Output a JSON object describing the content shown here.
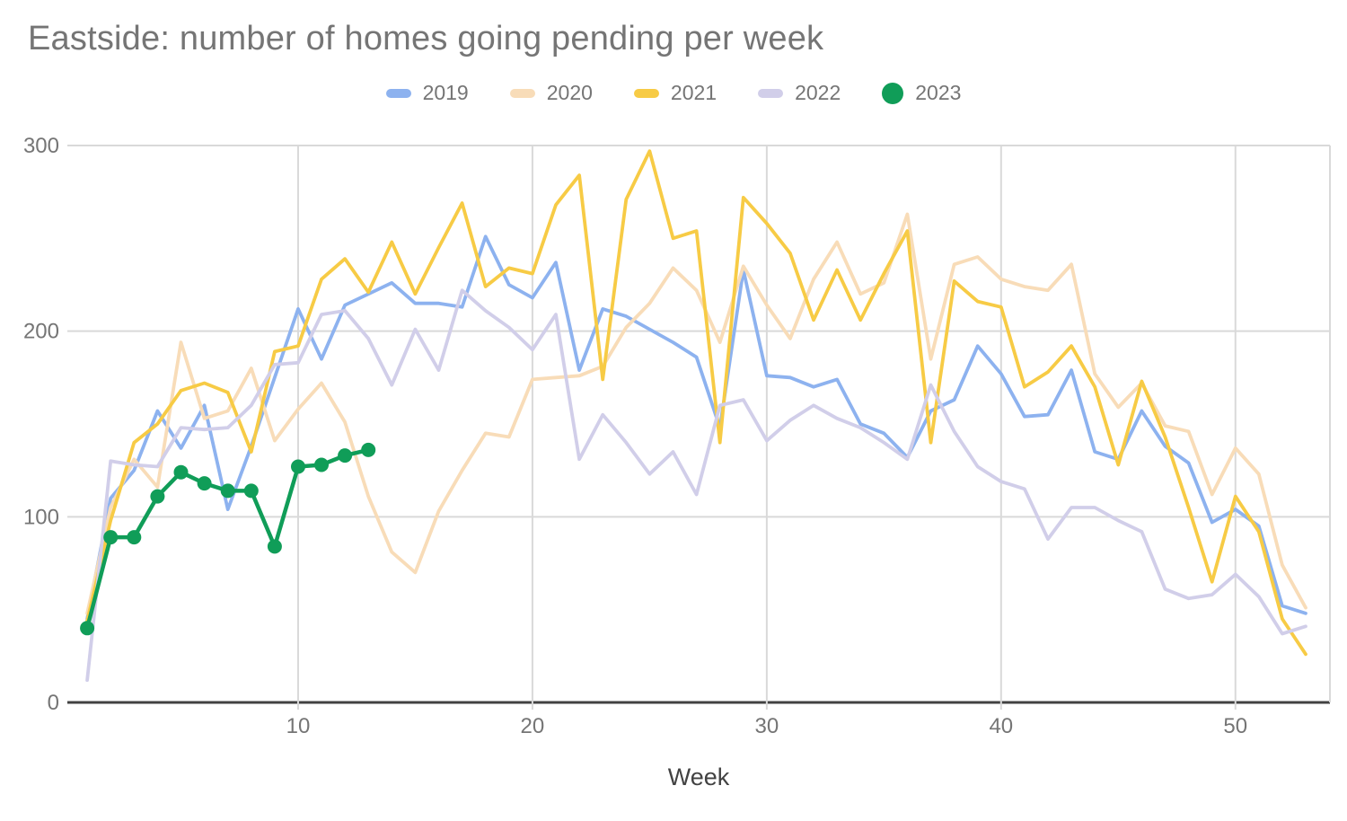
{
  "title": "Eastside: number of homes going pending per week",
  "x_axis_label": "Week",
  "colors": {
    "title_text": "#757575",
    "axis_text": "#757575",
    "axis_title_text": "#424242",
    "gridline": "#d9d9d9",
    "baseline": "#424242",
    "background": "#ffffff"
  },
  "chart_data": {
    "type": "line",
    "title": "Eastside: number of homes going pending per week",
    "xlabel": "Week",
    "ylabel": "",
    "xlim": [
      1,
      53
    ],
    "ylim": [
      0,
      300
    ],
    "xticks": [
      10,
      20,
      30,
      40,
      50
    ],
    "yticks": [
      0,
      100,
      200,
      300
    ],
    "grid": true,
    "legend_position": "top",
    "legend_entries": [
      "2019",
      "2020",
      "2021",
      "2022",
      "2023"
    ],
    "x_weeks": "weeks 1-53, series values listed from week 1",
    "series": [
      {
        "name": "2019",
        "color": "#8db2ef",
        "markers": false,
        "values": [
          45,
          110,
          125,
          157,
          137,
          160,
          104,
          138,
          175,
          212,
          185,
          214,
          220,
          226,
          215,
          215,
          213,
          251,
          225,
          218,
          237,
          179,
          212,
          208,
          201,
          194,
          186,
          148,
          233,
          176,
          175,
          170,
          174,
          150,
          145,
          132,
          157,
          163,
          192,
          177,
          154,
          155,
          179,
          135,
          131,
          157,
          138,
          129,
          97,
          104,
          95,
          52,
          48
        ]
      },
      {
        "name": "2020",
        "color": "#f8dcb8",
        "markers": false,
        "values": [
          48,
          105,
          131,
          116,
          194,
          153,
          157,
          180,
          141,
          158,
          172,
          151,
          111,
          81,
          70,
          103,
          125,
          145,
          143,
          174,
          175,
          176,
          181,
          202,
          215,
          234,
          222,
          194,
          235,
          214,
          196,
          228,
          248,
          220,
          226,
          263,
          185,
          236,
          240,
          228,
          224,
          222,
          236,
          177,
          159,
          172,
          149,
          146,
          112,
          137,
          123,
          74,
          51
        ]
      },
      {
        "name": "2021",
        "color": "#f7cb45",
        "markers": false,
        "values": [
          44,
          98,
          140,
          150,
          168,
          172,
          167,
          135,
          189,
          192,
          228,
          239,
          221,
          248,
          220,
          245,
          269,
          224,
          234,
          231,
          268,
          284,
          174,
          271,
          297,
          250,
          254,
          140,
          272,
          258,
          242,
          206,
          233,
          206,
          231,
          254,
          140,
          227,
          216,
          213,
          170,
          178,
          192,
          170,
          128,
          173,
          143,
          105,
          65,
          111,
          92,
          45,
          26
        ]
      },
      {
        "name": "2022",
        "color": "#d1cee9",
        "markers": false,
        "values": [
          12,
          130,
          128,
          127,
          148,
          147,
          148,
          160,
          182,
          183,
          209,
          211,
          196,
          171,
          201,
          179,
          222,
          211,
          202,
          190,
          209,
          131,
          155,
          140,
          123,
          135,
          112,
          160,
          163,
          141,
          152,
          160,
          153,
          148,
          140,
          131,
          171,
          146,
          127,
          119,
          115,
          88,
          105,
          105,
          98,
          92,
          61,
          56,
          58,
          69,
          57,
          37,
          41
        ]
      },
      {
        "name": "2023",
        "color": "#109d58",
        "markers": true,
        "values": [
          40,
          89,
          89,
          111,
          124,
          118,
          114,
          114,
          84,
          127,
          128,
          133,
          136
        ]
      }
    ]
  }
}
